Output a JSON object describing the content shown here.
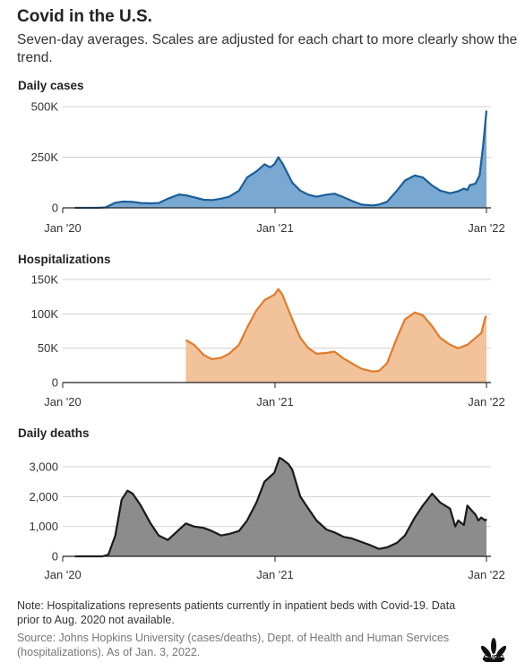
{
  "title": "Covid in the U.S.",
  "subtitle": "Seven-day averages. Scales are adjusted for each chart to more clearly show the trend.",
  "note": "Note: Hospitalizations represents patients currently in inpatient beds with Covid-19. Data prior to Aug. 2020 not available.",
  "source": "Source: Johns Hopkins University (cases/deaths), Dept. of Health and Human Services (hospitalizations). As of Jan. 3, 2022.",
  "logo_text": "CNBC",
  "chart_data": [
    {
      "type": "area",
      "title": "Daily cases",
      "color": "#1a5e9a",
      "fill": "#79a8d2",
      "x_ticks": [
        "Jan '20",
        "Jan '21",
        "Jan '22"
      ],
      "x_range": [
        "2020-01-01",
        "2022-01-03"
      ],
      "y_ticks": [
        0,
        250000,
        500000
      ],
      "y_tick_labels": [
        "0",
        "250K",
        "500K"
      ],
      "ylim": [
        0,
        500000
      ],
      "grid": true,
      "series": [
        {
          "x": [
            "2020-01-22",
            "2020-03-01",
            "2020-03-15",
            "2020-04-01",
            "2020-04-15",
            "2020-05-01",
            "2020-05-15",
            "2020-06-01",
            "2020-06-15",
            "2020-07-01",
            "2020-07-20",
            "2020-08-01",
            "2020-08-15",
            "2020-09-01",
            "2020-09-15",
            "2020-10-01",
            "2020-10-15",
            "2020-11-01",
            "2020-11-15",
            "2020-12-01",
            "2020-12-15",
            "2020-12-25",
            "2021-01-01",
            "2021-01-08",
            "2021-01-15",
            "2021-02-01",
            "2021-02-15",
            "2021-03-01",
            "2021-03-15",
            "2021-04-01",
            "2021-04-15",
            "2021-05-01",
            "2021-05-15",
            "2021-06-01",
            "2021-06-20",
            "2021-07-01",
            "2021-07-15",
            "2021-08-01",
            "2021-08-15",
            "2021-09-01",
            "2021-09-15",
            "2021-10-01",
            "2021-10-15",
            "2021-11-01",
            "2021-11-15",
            "2021-11-25",
            "2021-12-01",
            "2021-12-05",
            "2021-12-15",
            "2021-12-22",
            "2021-12-28",
            "2022-01-01",
            "2022-01-03"
          ],
          "values": [
            0,
            0,
            2000,
            25000,
            31000,
            29000,
            24000,
            22000,
            24000,
            45000,
            66000,
            62000,
            52000,
            40000,
            38000,
            45000,
            55000,
            85000,
            150000,
            180000,
            215000,
            200000,
            215000,
            250000,
            220000,
            125000,
            85000,
            65000,
            55000,
            65000,
            70000,
            52000,
            35000,
            16000,
            12000,
            16000,
            30000,
            85000,
            135000,
            160000,
            150000,
            110000,
            85000,
            72000,
            82000,
            95000,
            88000,
            112000,
            120000,
            160000,
            300000,
            420000,
            480000
          ]
        }
      ]
    },
    {
      "type": "area",
      "title": "Hospitalizations",
      "color": "#e07b2a",
      "fill": "#f2c29a",
      "x_ticks": [
        "Jan '20",
        "Jan '21",
        "Jan '22"
      ],
      "x_range": [
        "2020-01-01",
        "2022-01-03"
      ],
      "y_ticks": [
        0,
        50000,
        100000,
        150000
      ],
      "y_tick_labels": [
        "0",
        "50K",
        "100K",
        "150K"
      ],
      "ylim": [
        0,
        150000
      ],
      "grid": true,
      "series": [
        {
          "x": [
            "2020-08-01",
            "2020-08-15",
            "2020-09-01",
            "2020-09-15",
            "2020-10-01",
            "2020-10-15",
            "2020-11-01",
            "2020-11-15",
            "2020-12-01",
            "2020-12-15",
            "2021-01-01",
            "2021-01-08",
            "2021-01-15",
            "2021-02-01",
            "2021-02-15",
            "2021-03-01",
            "2021-03-15",
            "2021-04-01",
            "2021-04-15",
            "2021-05-01",
            "2021-05-15",
            "2021-06-01",
            "2021-06-20",
            "2021-07-01",
            "2021-07-15",
            "2021-08-01",
            "2021-08-15",
            "2021-09-01",
            "2021-09-15",
            "2021-10-01",
            "2021-10-15",
            "2021-11-01",
            "2021-11-15",
            "2021-12-01",
            "2021-12-15",
            "2021-12-25",
            "2022-01-01",
            "2022-01-03"
          ],
          "values": [
            62000,
            55000,
            40000,
            34000,
            36000,
            42000,
            55000,
            80000,
            105000,
            120000,
            128000,
            136000,
            128000,
            92000,
            65000,
            50000,
            42000,
            43000,
            45000,
            35000,
            28000,
            20000,
            16000,
            17000,
            28000,
            65000,
            92000,
            102000,
            98000,
            82000,
            65000,
            55000,
            50000,
            55000,
            65000,
            72000,
            95000,
            97000
          ]
        }
      ]
    },
    {
      "type": "area",
      "title": "Daily deaths",
      "color": "#1a1a1a",
      "fill": "#8c8c8c",
      "x_ticks": [
        "Jan '20",
        "Jan '21",
        "Jan '22"
      ],
      "x_range": [
        "2020-01-01",
        "2022-01-03"
      ],
      "y_ticks": [
        0,
        1000,
        2000,
        3000
      ],
      "y_tick_labels": [
        "0",
        "1,000",
        "2,000",
        "3,000"
      ],
      "ylim": [
        0,
        3000
      ],
      "grid": true,
      "series": [
        {
          "x": [
            "2020-01-22",
            "2020-03-10",
            "2020-03-20",
            "2020-04-01",
            "2020-04-12",
            "2020-04-22",
            "2020-05-01",
            "2020-05-15",
            "2020-06-01",
            "2020-06-15",
            "2020-07-01",
            "2020-07-15",
            "2020-08-01",
            "2020-08-15",
            "2020-09-01",
            "2020-09-15",
            "2020-10-01",
            "2020-10-15",
            "2020-11-01",
            "2020-11-15",
            "2020-12-01",
            "2020-12-15",
            "2021-01-01",
            "2021-01-10",
            "2021-01-15",
            "2021-01-25",
            "2021-02-01",
            "2021-02-15",
            "2021-03-01",
            "2021-03-15",
            "2021-04-01",
            "2021-04-15",
            "2021-05-01",
            "2021-05-15",
            "2021-06-01",
            "2021-06-15",
            "2021-07-01",
            "2021-07-15",
            "2021-08-01",
            "2021-08-15",
            "2021-09-01",
            "2021-09-15",
            "2021-10-01",
            "2021-10-15",
            "2021-11-01",
            "2021-11-10",
            "2021-11-15",
            "2021-11-25",
            "2021-12-01",
            "2021-12-10",
            "2021-12-15",
            "2021-12-20",
            "2021-12-25",
            "2022-01-01",
            "2022-01-03"
          ],
          "values": [
            0,
            0,
            60,
            700,
            1900,
            2200,
            2100,
            1700,
            1100,
            700,
            550,
            800,
            1100,
            1000,
            950,
            850,
            700,
            750,
            850,
            1200,
            1800,
            2500,
            2800,
            3300,
            3250,
            3100,
            2900,
            2000,
            1600,
            1200,
            900,
            800,
            650,
            600,
            480,
            380,
            250,
            300,
            450,
            700,
            1300,
            1700,
            2100,
            1800,
            1600,
            1000,
            1200,
            1050,
            1700,
            1500,
            1400,
            1200,
            1300,
            1200,
            1250
          ]
        }
      ]
    }
  ]
}
